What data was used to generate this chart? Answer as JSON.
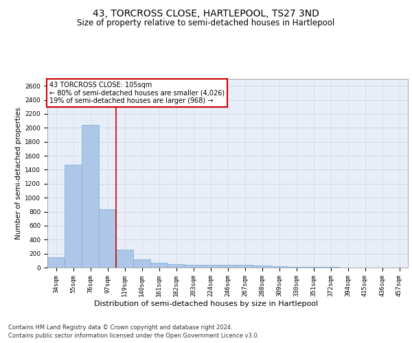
{
  "title": "43, TORCROSS CLOSE, HARTLEPOOL, TS27 3ND",
  "subtitle": "Size of property relative to semi-detached houses in Hartlepool",
  "xlabel": "Distribution of semi-detached houses by size in Hartlepool",
  "ylabel": "Number of semi-detached properties",
  "categories": [
    "34sqm",
    "55sqm",
    "76sqm",
    "97sqm",
    "119sqm",
    "140sqm",
    "161sqm",
    "182sqm",
    "203sqm",
    "224sqm",
    "246sqm",
    "267sqm",
    "288sqm",
    "309sqm",
    "330sqm",
    "351sqm",
    "372sqm",
    "394sqm",
    "415sqm",
    "436sqm",
    "457sqm"
  ],
  "values": [
    152,
    1470,
    2040,
    835,
    255,
    115,
    65,
    45,
    35,
    35,
    35,
    35,
    30,
    20,
    12,
    8,
    5,
    4,
    3,
    2,
    1
  ],
  "bar_color": "#aec6e8",
  "bar_edgecolor": "#7aadd4",
  "vline_color": "#cc0000",
  "annotation_text": "43 TORCROSS CLOSE: 105sqm\n← 80% of semi-detached houses are smaller (4,026)\n19% of semi-detached houses are larger (968) →",
  "annotation_box_color": "#ffffff",
  "annotation_box_edgecolor": "#cc0000",
  "ylim": [
    0,
    2700
  ],
  "yticks": [
    0,
    200,
    400,
    600,
    800,
    1000,
    1200,
    1400,
    1600,
    1800,
    2000,
    2200,
    2400,
    2600
  ],
  "grid_color": "#d0d8e8",
  "bg_color": "#e8eef8",
  "footer_line1": "Contains HM Land Registry data © Crown copyright and database right 2024.",
  "footer_line2": "Contains public sector information licensed under the Open Government Licence v3.0.",
  "title_fontsize": 10,
  "subtitle_fontsize": 8.5,
  "xlabel_fontsize": 8,
  "ylabel_fontsize": 7.5,
  "tick_fontsize": 6.5,
  "footer_fontsize": 6,
  "ann_fontsize": 7
}
